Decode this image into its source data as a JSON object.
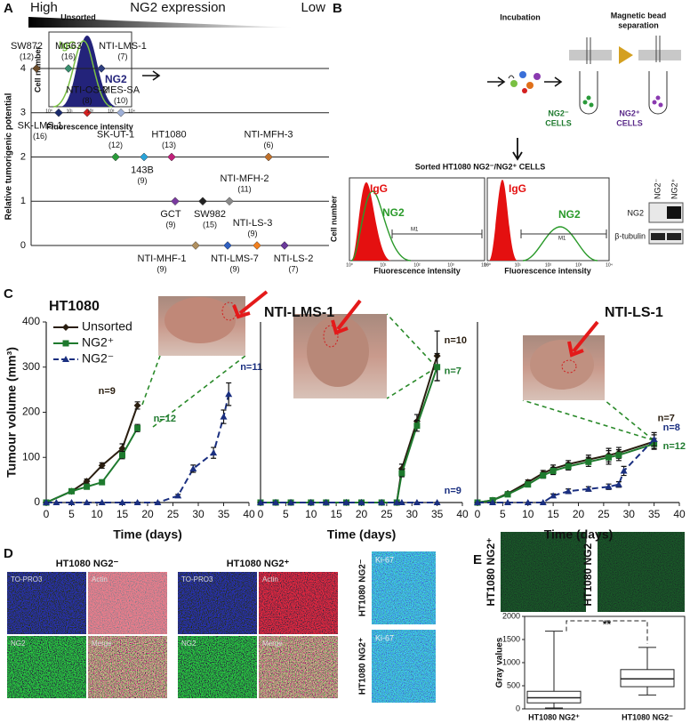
{
  "chart_data": [
    {
      "type": "scatter",
      "scale": {
        "high": "High",
        "title": "NG2 expression",
        "low": "Low"
      },
      "ylabel": "Relative tumorigenic potential",
      "ylim": [
        0,
        4
      ],
      "yticks": [
        0,
        1,
        2,
        3,
        4
      ],
      "categories": [
        "SW872",
        "SK-LMS-1",
        "MG63",
        "NTI-OS-2",
        "NTI-LMS-1",
        "SK-UT-1",
        "MES-SA",
        "143B",
        "HT1080",
        "GCT",
        "NTI-MHF-1",
        "SW982",
        "NTI-LMS-7",
        "NTI-MFH-2",
        "NTI-LS-3",
        "NTI-MFH-3",
        "NTI-LS-2"
      ],
      "n_labels": [
        "(12)",
        "(16)",
        "(16)",
        "(8)",
        "(7)",
        "(12)",
        "(10)",
        "(9)",
        "(13)",
        "(9)",
        "(9)",
        "(15)",
        "(9)",
        "(11)",
        "(9)",
        "(6)",
        "(7)"
      ],
      "values": [
        4,
        3,
        4,
        3,
        4,
        2,
        3,
        2,
        2,
        1,
        0,
        1,
        0,
        1,
        0,
        2,
        0
      ],
      "colors": [
        "#6b4c2a",
        "#1a2a6c",
        "#3a8f6f",
        "#d42020",
        "#2e3f7f",
        "#2a9a3a",
        "#9fb0d8",
        "#29a3d8",
        "#c0207a",
        "#7a3aa0",
        "#b09060",
        "#222222",
        "#3060c0",
        "#8a8a8a",
        "#f08020",
        "#c0702a",
        "#6a3a9a"
      ]
    },
    {
      "type": "line",
      "title": "HT1080",
      "xlabel": "Time (days)",
      "ylabel": "Tumour volume (mm³)",
      "xlim": [
        0,
        40
      ],
      "xticks": [
        0,
        5,
        10,
        15,
        20,
        25,
        30,
        35,
        40
      ],
      "ylim": [
        0,
        400
      ],
      "yticks": [
        0,
        100,
        200,
        300,
        400
      ],
      "legend": "upper left",
      "series": [
        {
          "name": "Unsorted",
          "color": "#2a1e10",
          "marker": "diamond",
          "dash": false,
          "note": "n=9",
          "x": [
            0,
            5,
            8,
            11,
            15,
            18
          ],
          "values": [
            0,
            25,
            47,
            82,
            120,
            215
          ],
          "errors": [
            0,
            3,
            5,
            6,
            10,
            8
          ]
        },
        {
          "name": "NG2⁺",
          "color": "#1e7a2e",
          "marker": "square",
          "dash": false,
          "note": "n=12",
          "x": [
            0,
            5,
            8,
            11,
            15,
            18
          ],
          "values": [
            0,
            25,
            35,
            45,
            105,
            165
          ],
          "errors": [
            0,
            3,
            4,
            5,
            8,
            8
          ]
        },
        {
          "name": "NG2⁻",
          "color": "#1a2f80",
          "marker": "triangle",
          "dash": true,
          "note": "n=11",
          "x": [
            0,
            2,
            5,
            8,
            11,
            15,
            18,
            22,
            26,
            29,
            33,
            35,
            36
          ],
          "values": [
            0,
            0,
            0,
            0,
            0,
            0,
            0,
            0,
            15,
            75,
            110,
            190,
            240
          ],
          "errors": [
            0,
            0,
            0,
            0,
            0,
            0,
            0,
            0,
            3,
            8,
            12,
            15,
            25
          ]
        }
      ]
    },
    {
      "type": "line",
      "title": "NTI-LMS-1",
      "xlabel": "Time (days)",
      "xlim": [
        0,
        40
      ],
      "xticks": [
        0,
        5,
        10,
        15,
        20,
        25,
        30,
        35,
        40
      ],
      "ylim": [
        0,
        400
      ],
      "series": [
        {
          "name": "Unsorted",
          "color": "#2a1e10",
          "marker": "diamond",
          "dash": false,
          "note": "n=10",
          "x": [
            0,
            3,
            6,
            10,
            13,
            17,
            20,
            24,
            27,
            28,
            31,
            35
          ],
          "values": [
            0,
            0,
            0,
            0,
            0,
            0,
            0,
            0,
            0,
            75,
            180,
            325
          ],
          "errors": [
            0,
            0,
            0,
            0,
            0,
            0,
            0,
            0,
            0,
            10,
            15,
            55
          ]
        },
        {
          "name": "NG2⁺",
          "color": "#1e7a2e",
          "marker": "square",
          "dash": false,
          "note": "n=7",
          "x": [
            0,
            3,
            6,
            10,
            13,
            17,
            20,
            24,
            27,
            28,
            31,
            35
          ],
          "values": [
            0,
            0,
            0,
            0,
            0,
            0,
            0,
            0,
            0,
            65,
            170,
            300
          ],
          "errors": [
            0,
            0,
            0,
            0,
            0,
            0,
            0,
            0,
            0,
            8,
            12,
            30
          ]
        },
        {
          "name": "NG2⁻",
          "color": "#1a2f80",
          "marker": "triangle",
          "dash": true,
          "note": "n=9",
          "x": [
            0,
            3,
            6,
            10,
            13,
            17,
            20,
            24,
            27,
            28,
            31,
            35
          ],
          "values": [
            0,
            0,
            0,
            0,
            0,
            0,
            0,
            0,
            0,
            0,
            0,
            0
          ],
          "errors": [
            0,
            0,
            0,
            0,
            0,
            0,
            0,
            0,
            0,
            0,
            0,
            0
          ]
        }
      ]
    },
    {
      "type": "line",
      "title": "NTI-LS-1",
      "xlabel": "Time (days)",
      "xlim": [
        0,
        40
      ],
      "xticks": [
        0,
        5,
        10,
        15,
        20,
        25,
        30,
        35,
        40
      ],
      "ylim": [
        0,
        400
      ],
      "series": [
        {
          "name": "Unsorted",
          "color": "#2a1e10",
          "marker": "diamond",
          "dash": false,
          "note": "n=7",
          "x": [
            0,
            3,
            6,
            10,
            13,
            15,
            18,
            22,
            26,
            28,
            35
          ],
          "values": [
            0,
            5,
            20,
            45,
            65,
            75,
            85,
            95,
            105,
            110,
            135
          ],
          "errors": [
            0,
            2,
            4,
            5,
            6,
            8,
            8,
            10,
            15,
            12,
            15
          ]
        },
        {
          "name": "NG2⁺",
          "color": "#1e7a2e",
          "marker": "square",
          "dash": false,
          "note": "n=12",
          "x": [
            0,
            3,
            6,
            10,
            13,
            15,
            18,
            22,
            26,
            28,
            35
          ],
          "values": [
            0,
            5,
            18,
            40,
            60,
            70,
            80,
            90,
            100,
            105,
            130
          ],
          "errors": [
            0,
            2,
            4,
            5,
            6,
            8,
            8,
            10,
            15,
            12,
            12
          ]
        },
        {
          "name": "NG2⁻",
          "color": "#1a2f80",
          "marker": "triangle",
          "dash": true,
          "note": "n=8",
          "x": [
            0,
            3,
            6,
            10,
            13,
            15,
            18,
            22,
            26,
            28,
            29,
            35
          ],
          "values": [
            0,
            0,
            0,
            0,
            0,
            15,
            25,
            30,
            35,
            40,
            70,
            140
          ],
          "errors": [
            0,
            0,
            0,
            0,
            0,
            4,
            5,
            5,
            6,
            6,
            10,
            15
          ]
        }
      ]
    },
    {
      "type": "box",
      "ylabel": "Gray values",
      "ylim": [
        0,
        2000
      ],
      "yticks": [
        0,
        500,
        1000,
        1500,
        2000
      ],
      "categories": [
        "HT1080 NG2⁺",
        "HT1080 NG2⁻"
      ],
      "boxes": [
        {
          "min": 20,
          "q1": 130,
          "median": 240,
          "q3": 380,
          "max": 1680
        },
        {
          "min": 300,
          "q1": 480,
          "median": 650,
          "q3": 850,
          "max": 1330
        }
      ],
      "annotation": "**"
    }
  ],
  "panel_labels": [
    "A",
    "B",
    "C",
    "D",
    "E"
  ],
  "panel_b": {
    "unsorted": "Unsorted",
    "incubation": "Incubation",
    "separation": [
      "Magnetic bead",
      "separation"
    ],
    "igg": "IgG",
    "ng2": "NG2",
    "cell_number": "Cell number",
    "fluorescence": "Fluorescence intensity",
    "neg_cells": [
      "NG2⁻",
      "CELLS"
    ],
    "pos_cells": [
      "NG2⁺",
      "CELLS"
    ],
    "sorted": "Sorted HT1080 NG2⁻/NG2⁺ CELLS",
    "m1": "M1",
    "blot_rows": [
      "NG2",
      "β-tubulin"
    ],
    "blot_cols": [
      "NG2⁻",
      "NG2⁺"
    ],
    "hist_x_ticks": [
      "10⁰",
      "10¹",
      "10²",
      "10³",
      "10⁴"
    ]
  },
  "panel_d": {
    "groups": [
      "HT1080 NG2⁻",
      "HT1080 NG2⁺"
    ],
    "channels": [
      "TO-PRO3",
      "Actin",
      "NG2",
      "Merge"
    ],
    "ki67": "Ki-67",
    "ki67_rows": [
      "HT1080 NG2⁻",
      "HT1080 NG2⁺"
    ]
  },
  "panel_e": {
    "image_labels": [
      "HT1080 NG2⁺",
      "HT1080 NG2⁻"
    ]
  }
}
